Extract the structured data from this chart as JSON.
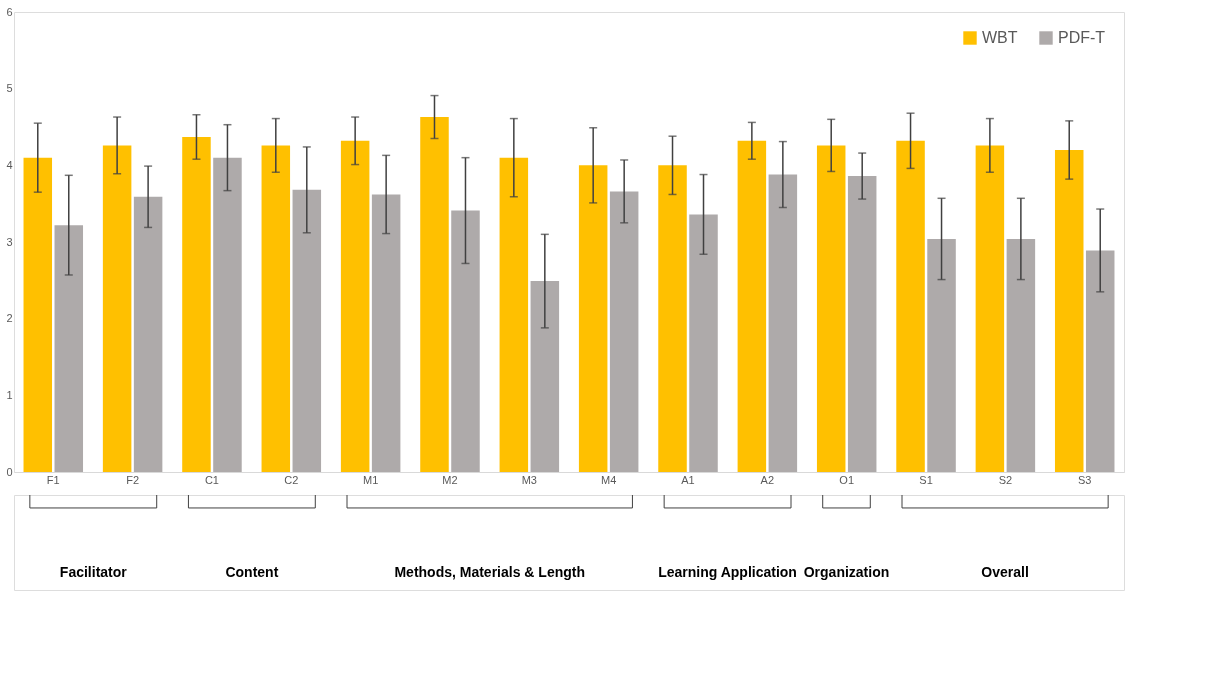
{
  "chart_data": {
    "type": "bar",
    "categories": [
      "F1",
      "F2",
      "C1",
      "C2",
      "M1",
      "M2",
      "M3",
      "M4",
      "A1",
      "A2",
      "O1",
      "S1",
      "S2",
      "S3"
    ],
    "series": [
      {
        "name": "WBT",
        "color": "#ffc000",
        "values": [
          4.1,
          4.26,
          4.37,
          4.26,
          4.32,
          4.63,
          4.1,
          4.0,
          4.0,
          4.32,
          4.26,
          4.32,
          4.26,
          4.2
        ],
        "errors": [
          0.45,
          0.37,
          0.29,
          0.35,
          0.31,
          0.28,
          0.51,
          0.49,
          0.38,
          0.24,
          0.34,
          0.36,
          0.35,
          0.38
        ]
      },
      {
        "name": "PDF-T",
        "color": "#aeaaaa",
        "values": [
          3.22,
          3.59,
          4.1,
          3.68,
          3.62,
          3.41,
          2.49,
          3.66,
          3.36,
          3.88,
          3.86,
          3.04,
          3.04,
          2.89
        ],
        "errors": [
          0.65,
          0.4,
          0.43,
          0.56,
          0.51,
          0.69,
          0.61,
          0.41,
          0.52,
          0.43,
          0.3,
          0.53,
          0.53,
          0.54
        ]
      }
    ],
    "ylim": [
      0,
      6
    ],
    "yticks": [
      0,
      1,
      2,
      3,
      4,
      5,
      6
    ],
    "grid": false,
    "legend": "top right",
    "annotations": [
      "Facilitator",
      "Content",
      "Methods, Materials & Length",
      "Learning Application",
      "Organization",
      "Overall"
    ]
  }
}
